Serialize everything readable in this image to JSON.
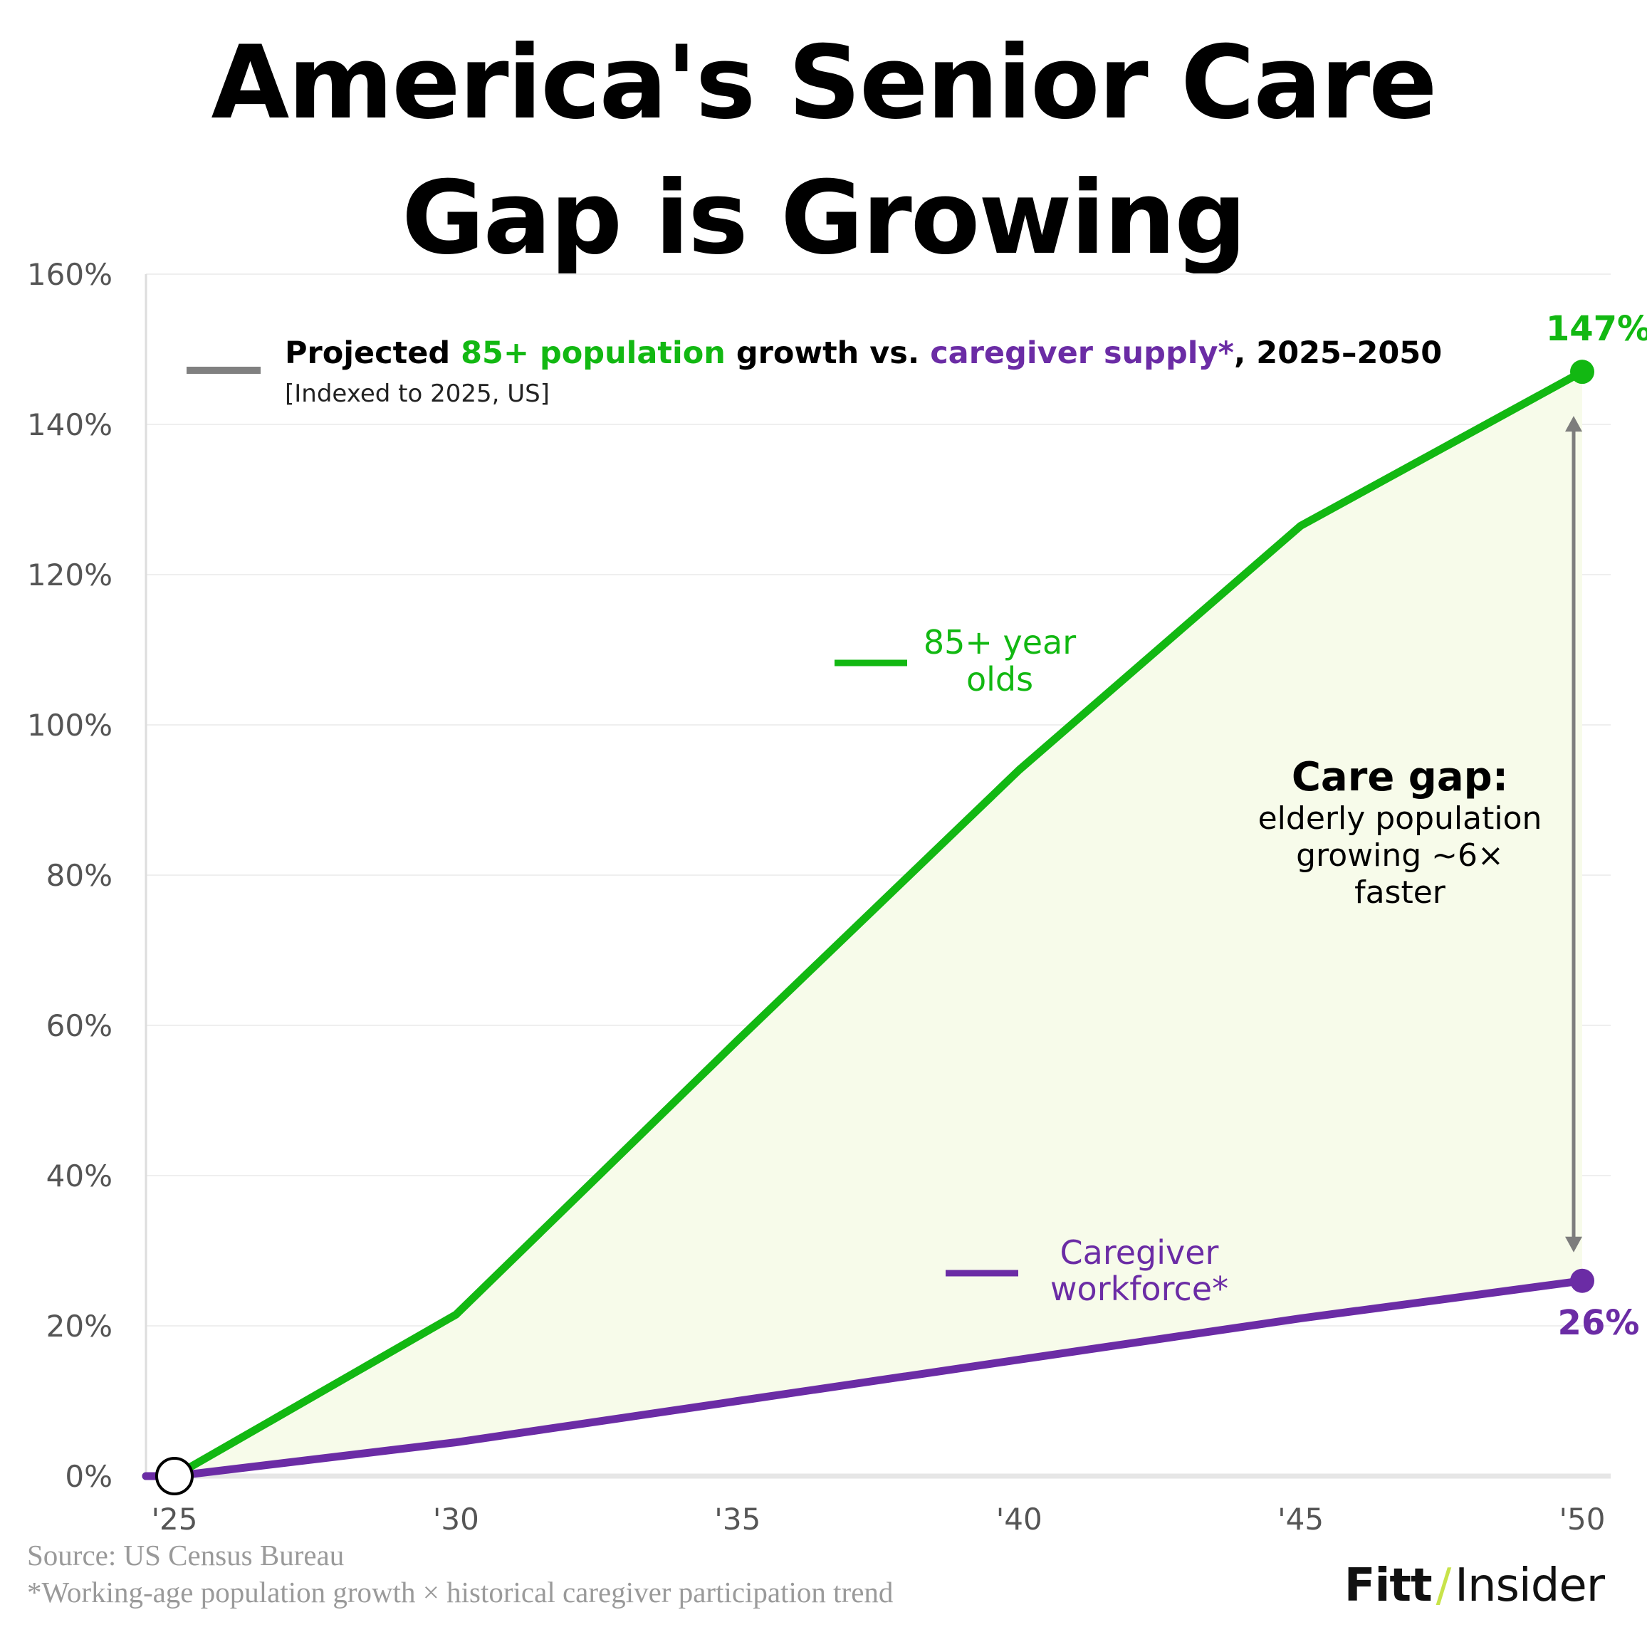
{
  "title_lines": [
    "America's Senior Care",
    "Gap is Growing"
  ],
  "legend": {
    "part1": "Projected ",
    "part2": "85+ population",
    "part3": " growth vs. ",
    "part4": "caregiver supply*",
    "part5": ", 2025–2050",
    "subtitle": "[Indexed to 2025, US]"
  },
  "series_labels": {
    "elderly_line1": "85+ year",
    "elderly_line2": "olds",
    "caregiver_line1": "Caregiver",
    "caregiver_line2": "workforce*"
  },
  "end_labels": {
    "elderly": "147%",
    "caregiver": "26%"
  },
  "care_gap": {
    "heading": "Care gap:",
    "line1": "elderly population",
    "line2": "growing ~6×",
    "line3": "faster"
  },
  "footer": {
    "source": "Source: US Census Bureau",
    "note": "*Working-age population growth × historical caregiver participation trend"
  },
  "brand": {
    "part1": "Fitt",
    "slash": "/",
    "part2": "Insider"
  },
  "colors": {
    "elderly": "#12b812",
    "caregiver": "#6b2ca5",
    "gap_fill": "#f7fbea",
    "arrow": "#7d7d7d",
    "legend_line": "#808080"
  },
  "chart_data": {
    "type": "line",
    "x": [
      "'25",
      "'30",
      "'35",
      "'40",
      "'45",
      "'50"
    ],
    "y_ticks": [
      "0%",
      "20%",
      "40%",
      "60%",
      "80%",
      "100%",
      "120%",
      "140%",
      "160%"
    ],
    "ylim": [
      0,
      160
    ],
    "series": [
      {
        "name": "85+ year olds",
        "values": [
          0,
          21.5,
          58,
          94,
          126.5,
          147
        ]
      },
      {
        "name": "Caregiver workforce*",
        "values": [
          0,
          4.5,
          10,
          15.5,
          21,
          26
        ]
      }
    ],
    "grid": true
  }
}
